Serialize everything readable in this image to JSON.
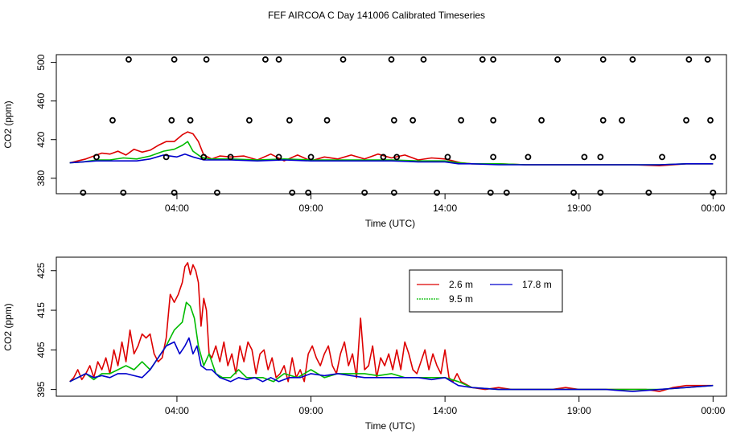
{
  "title": "FEF AIRCOA C  Day 141006  Calibrated Timeseries",
  "chart_data": [
    {
      "type": "line",
      "panel": "top",
      "xlabel": "Time (UTC)",
      "ylabel": "CO2 (ppm)",
      "x_tick_labels": [
        "04:00",
        "09:00",
        "14:00",
        "19:00",
        "00:00"
      ],
      "x_tick_hours": [
        4,
        9,
        14,
        19,
        24
      ],
      "xlim": [
        -0.5,
        24.5
      ],
      "ylim": [
        364,
        508
      ],
      "y_ticks": [
        380,
        420,
        460,
        500
      ],
      "series": [
        {
          "name": "2.6 m",
          "color": "#dd0000",
          "x": [
            0,
            0.3,
            0.6,
            0.9,
            1.2,
            1.5,
            1.8,
            2.1,
            2.4,
            2.7,
            3.0,
            3.3,
            3.6,
            3.9,
            4.2,
            4.4,
            4.6,
            4.8,
            5.0,
            5.3,
            5.6,
            6.0,
            6.5,
            7.0,
            7.5,
            8.0,
            8.5,
            9.0,
            9.5,
            10.0,
            10.5,
            11.0,
            11.5,
            12.0,
            12.5,
            13.0,
            13.5,
            14.0,
            14.3,
            14.6,
            15.0,
            16.0,
            17.0,
            18.0,
            19.0,
            20.0,
            21.0,
            22.0,
            23.0,
            24.0
          ],
          "y": [
            396,
            398,
            400,
            403,
            406,
            405,
            408,
            404,
            410,
            407,
            409,
            414,
            418,
            418,
            425,
            428,
            426,
            418,
            404,
            400,
            403,
            402,
            403,
            399,
            405,
            398,
            404,
            398,
            402,
            400,
            404,
            400,
            405,
            401,
            404,
            399,
            401,
            400,
            398,
            396,
            395,
            395,
            394,
            394,
            394,
            394,
            394,
            393,
            395,
            395
          ]
        },
        {
          "name": "9.5 m",
          "color": "#00bb00",
          "x": [
            0,
            0.5,
            1.0,
            1.5,
            2.0,
            2.5,
            3.0,
            3.5,
            3.9,
            4.2,
            4.4,
            4.6,
            4.9,
            5.2,
            5.6,
            6.0,
            7.0,
            8.0,
            9.0,
            10.0,
            11.0,
            12.0,
            13.0,
            14.0,
            14.5,
            15.0,
            16.0,
            17.0,
            18.0,
            19.0,
            20.0,
            21.0,
            22.0,
            23.0,
            24.0
          ],
          "y": [
            396,
            397,
            399,
            399,
            401,
            400,
            403,
            408,
            410,
            414,
            418,
            408,
            402,
            400,
            400,
            400,
            399,
            400,
            399,
            399,
            399,
            399,
            398,
            398,
            396,
            395,
            395,
            394,
            394,
            394,
            394,
            394,
            394,
            395,
            395
          ]
        },
        {
          "name": "17.8 m",
          "color": "#0000cc",
          "x": [
            0,
            0.5,
            1.0,
            1.5,
            2.0,
            2.5,
            3.0,
            3.5,
            4.0,
            4.3,
            4.6,
            5.0,
            6.0,
            7.0,
            8.0,
            9.0,
            10.0,
            11.0,
            12.0,
            13.0,
            14.0,
            14.5,
            15.0,
            16.0,
            17.0,
            18.0,
            19.0,
            20.0,
            21.0,
            22.0,
            23.0,
            24.0
          ],
          "y": [
            396,
            397,
            398,
            398,
            398,
            398,
            400,
            404,
            402,
            405,
            402,
            399,
            399,
            398,
            399,
            398,
            398,
            398,
            398,
            397,
            397,
            395,
            395,
            394,
            394,
            394,
            394,
            394,
            394,
            394,
            395,
            395
          ]
        }
      ],
      "calibration_points": {
        "marker": "open-circle",
        "x": [
          0.5,
          2.0,
          3.9,
          5.5,
          8.3,
          8.9,
          11.0,
          12.1,
          13.7,
          15.7,
          16.3,
          18.8,
          19.8,
          21.6,
          24.0,
          1.0,
          3.6,
          5.0,
          6.0,
          7.8,
          9.0,
          11.7,
          12.2,
          14.1,
          15.8,
          17.1,
          19.2,
          19.8,
          22.1,
          24.0,
          1.6,
          3.8,
          4.5,
          6.7,
          8.2,
          9.6,
          12.1,
          12.8,
          14.6,
          15.8,
          17.6,
          19.9,
          20.6,
          23.0,
          23.9,
          2.2,
          3.9,
          5.1,
          7.3,
          7.8,
          10.2,
          12.0,
          13.2,
          15.4,
          15.8,
          18.2,
          19.9,
          21.0,
          23.1,
          23.8
        ],
        "y": [
          365,
          365,
          365,
          365,
          365,
          365,
          365,
          365,
          365,
          365,
          365,
          365,
          365,
          365,
          365,
          402,
          402,
          402,
          402,
          402,
          402,
          402,
          402,
          402,
          402,
          402,
          402,
          402,
          402,
          402,
          440,
          440,
          440,
          440,
          440,
          440,
          440,
          440,
          440,
          440,
          440,
          440,
          440,
          440,
          440,
          503,
          503,
          503,
          503,
          503,
          503,
          503,
          503,
          503,
          503,
          503,
          503,
          503,
          503,
          503
        ]
      }
    },
    {
      "type": "line",
      "panel": "bottom",
      "xlabel": "Time (UTC)",
      "ylabel": "CO2 (ppm)",
      "x_tick_labels": [
        "04:00",
        "09:00",
        "14:00",
        "19:00",
        "00:00"
      ],
      "x_tick_hours": [
        4,
        9,
        14,
        19,
        24
      ],
      "xlim": [
        -0.5,
        24.5
      ],
      "ylim": [
        393.3,
        428.4
      ],
      "y_ticks": [
        395,
        405,
        415,
        425
      ],
      "legend": {
        "position": "top-center",
        "columns": 2,
        "entries": [
          {
            "name": "2.6 m",
            "color": "#dd0000",
            "dash": "solid"
          },
          {
            "name": "17.8 m",
            "color": "#0000cc",
            "dash": "solid"
          },
          {
            "name": "9.5 m",
            "color": "#00bb00",
            "dash": "dotted"
          }
        ]
      },
      "series": [
        {
          "name": "2.6 m",
          "color": "#dd0000",
          "x": [
            0,
            0.15,
            0.3,
            0.45,
            0.6,
            0.75,
            0.9,
            1.05,
            1.2,
            1.35,
            1.5,
            1.65,
            1.8,
            1.95,
            2.1,
            2.25,
            2.4,
            2.55,
            2.7,
            2.85,
            3.0,
            3.15,
            3.3,
            3.45,
            3.6,
            3.75,
            3.9,
            4.05,
            4.2,
            4.3,
            4.4,
            4.5,
            4.6,
            4.7,
            4.8,
            4.9,
            5.0,
            5.1,
            5.2,
            5.3,
            5.45,
            5.6,
            5.75,
            5.9,
            6.05,
            6.2,
            6.35,
            6.5,
            6.65,
            6.8,
            6.95,
            7.1,
            7.25,
            7.4,
            7.55,
            7.7,
            7.85,
            8.0,
            8.15,
            8.3,
            8.45,
            8.6,
            8.75,
            8.9,
            9.05,
            9.2,
            9.35,
            9.5,
            9.65,
            9.8,
            9.95,
            10.1,
            10.25,
            10.4,
            10.55,
            10.7,
            10.85,
            11.0,
            11.15,
            11.3,
            11.45,
            11.6,
            11.75,
            11.9,
            12.05,
            12.2,
            12.35,
            12.5,
            12.65,
            12.8,
            12.95,
            13.1,
            13.25,
            13.4,
            13.55,
            13.7,
            13.85,
            14.0,
            14.15,
            14.3,
            14.45,
            14.6,
            15.0,
            15.5,
            16.0,
            16.5,
            17.0,
            17.5,
            18.0,
            18.5,
            19.0,
            19.5,
            20.0,
            20.5,
            21.0,
            21.5,
            22.0,
            22.5,
            23.0,
            23.5,
            24.0
          ],
          "y": [
            397,
            398,
            400,
            397.5,
            399,
            401,
            398,
            402,
            400,
            403,
            399,
            405,
            401,
            407,
            402,
            410,
            404,
            406,
            409,
            408,
            409,
            404,
            402,
            403,
            408,
            419,
            417,
            419,
            422,
            426,
            427,
            424,
            426.5,
            425,
            422,
            411,
            418,
            415,
            404,
            403,
            406,
            402,
            407,
            401,
            404,
            399,
            406,
            402,
            407,
            405,
            399,
            404,
            405,
            400,
            403,
            398,
            399,
            401,
            397,
            403,
            398,
            400,
            397,
            404,
            406,
            403,
            401,
            404,
            406,
            401,
            399,
            404,
            407,
            401,
            404,
            398,
            413,
            400,
            401,
            406,
            398,
            403,
            401,
            404,
            400,
            405,
            400,
            407,
            404,
            400,
            399,
            402,
            405,
            400,
            404,
            401,
            399,
            405,
            398,
            397,
            399,
            397,
            395.5,
            395,
            395.5,
            395,
            395,
            395,
            395,
            395.5,
            395,
            395,
            395,
            395,
            395,
            395,
            394.5,
            395.5,
            396,
            396,
            396
          ]
        },
        {
          "name": "9.5 m",
          "color": "#00bb00",
          "x": [
            0,
            0.3,
            0.6,
            0.9,
            1.2,
            1.5,
            1.8,
            2.1,
            2.4,
            2.7,
            3.0,
            3.3,
            3.6,
            3.9,
            4.2,
            4.35,
            4.5,
            4.65,
            4.8,
            5.0,
            5.2,
            5.45,
            5.7,
            6.0,
            6.3,
            6.6,
            6.9,
            7.2,
            7.6,
            8.0,
            8.5,
            9.0,
            9.5,
            10.0,
            10.5,
            11.0,
            11.5,
            12.0,
            12.5,
            13.0,
            13.5,
            14.0,
            14.5,
            15.0,
            16.0,
            17.0,
            18.0,
            19.0,
            20.0,
            21.0,
            22.0,
            23.0,
            24.0
          ],
          "y": [
            397,
            398,
            399,
            397.5,
            399,
            399,
            400,
            401,
            400,
            402,
            400,
            403,
            406,
            410,
            412,
            417,
            416,
            413,
            406,
            401,
            404,
            399,
            398,
            398,
            400,
            398,
            398,
            398,
            397,
            399,
            398,
            400,
            398,
            399,
            399,
            399,
            398.5,
            399,
            398,
            398,
            398,
            398,
            397,
            395.5,
            395,
            395,
            395,
            395,
            395,
            395,
            395,
            395.5,
            396
          ]
        },
        {
          "name": "17.8 m",
          "color": "#0000cc",
          "x": [
            0,
            0.3,
            0.6,
            0.9,
            1.2,
            1.5,
            1.8,
            2.1,
            2.4,
            2.7,
            3.0,
            3.3,
            3.6,
            3.9,
            4.1,
            4.3,
            4.45,
            4.6,
            4.75,
            4.9,
            5.1,
            5.3,
            5.6,
            6.0,
            6.3,
            6.6,
            6.9,
            7.2,
            7.5,
            7.8,
            8.2,
            8.6,
            9.0,
            9.5,
            10.0,
            10.5,
            11.0,
            11.5,
            12.0,
            12.5,
            13.0,
            13.5,
            14.0,
            14.5,
            15.0,
            16.0,
            17.0,
            18.0,
            19.0,
            20.0,
            21.0,
            22.0,
            23.0,
            24.0
          ],
          "y": [
            397,
            398,
            399,
            398,
            398.5,
            398,
            399,
            399,
            398.5,
            398,
            400,
            403,
            406,
            407,
            404,
            406,
            408,
            404,
            406,
            401,
            400,
            400,
            398,
            397,
            398,
            397.5,
            398,
            397,
            398,
            397,
            398,
            398,
            399,
            398.5,
            399,
            398.5,
            398,
            398,
            398,
            398,
            398,
            397.5,
            398,
            396,
            395.5,
            395,
            395,
            395,
            395,
            395,
            394.5,
            395,
            395.5,
            396
          ]
        }
      ]
    }
  ]
}
